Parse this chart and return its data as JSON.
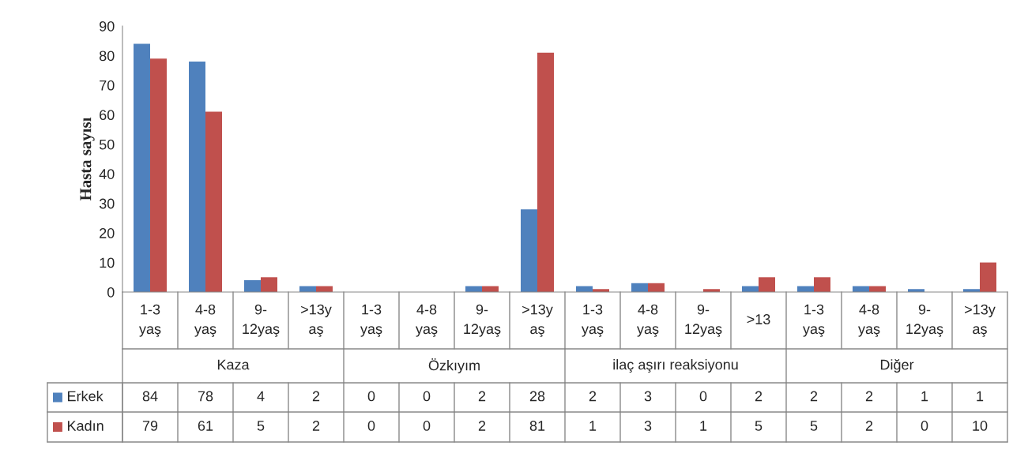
{
  "chart_data": {
    "type": "bar",
    "ylabel": "Hasta sayısı",
    "categories": [
      "1-3\nyaş",
      "4-8\nyaş",
      "9-\n12yaş",
      ">13y\naş",
      "1-3\nyaş",
      "4-8\nyaş",
      "9-\n12yaş",
      ">13y\naş",
      "1-3\nyaş",
      "4-8\nyaş",
      "9-\n12yaş",
      ">13",
      "1-3\nyaş",
      "4-8\nyaş",
      "9-\n12yaş",
      ">13y\naş"
    ],
    "series": [
      {
        "name": "Erkek",
        "color": "#4f81bd",
        "values": [
          84,
          78,
          4,
          2,
          0,
          0,
          2,
          28,
          2,
          3,
          0,
          2,
          2,
          2,
          1,
          1
        ]
      },
      {
        "name": "Kadın",
        "color": "#c0504d",
        "values": [
          79,
          61,
          5,
          2,
          0,
          0,
          2,
          81,
          1,
          3,
          1,
          5,
          5,
          2,
          0,
          10
        ]
      }
    ],
    "annotations": [
      "Kaza",
      "Özkıyım",
      "ilaç aşırı reaksiyonu",
      "Diğer"
    ],
    "ylim": [
      0,
      90
    ],
    "yticks": [
      0,
      10,
      20,
      30,
      40,
      50,
      60,
      70,
      80,
      90
    ],
    "data_labels": true,
    "legend": "bottom left",
    "grid": false
  }
}
